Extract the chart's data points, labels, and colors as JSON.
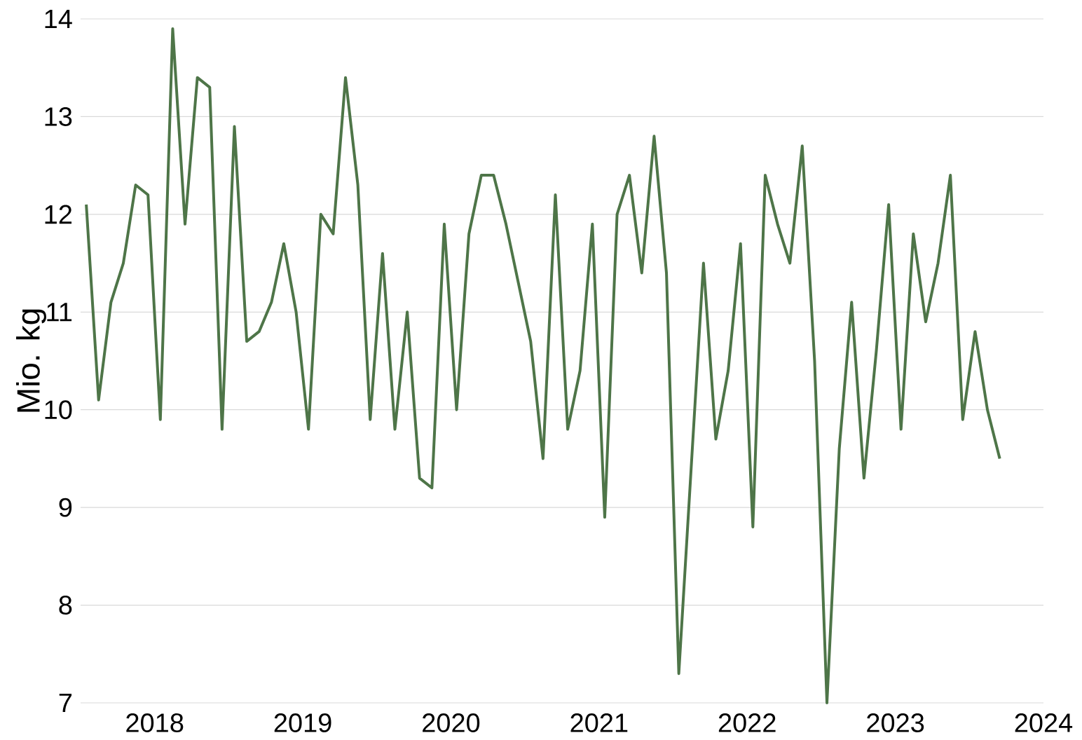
{
  "chart_data": {
    "type": "line",
    "ylabel": "Mio. kg",
    "x": [
      "2017-07-15",
      "2017-08-15",
      "2017-09-15",
      "2017-10-15",
      "2017-11-15",
      "2017-12-15",
      "2018-01-15",
      "2018-02-15",
      "2018-03-15",
      "2018-04-15",
      "2018-05-15",
      "2018-06-15",
      "2018-07-15",
      "2018-08-15",
      "2018-09-15",
      "2018-10-15",
      "2018-11-15",
      "2018-12-15",
      "2019-01-15",
      "2019-02-15",
      "2019-03-15",
      "2019-04-15",
      "2019-05-15",
      "2019-06-15",
      "2019-07-15",
      "2019-08-15",
      "2019-09-15",
      "2019-10-15",
      "2019-11-15",
      "2019-12-15",
      "2020-01-15",
      "2020-02-15",
      "2020-03-15",
      "2020-04-15",
      "2020-05-15",
      "2020-06-15",
      "2020-07-15",
      "2020-08-15",
      "2020-09-15",
      "2020-10-15",
      "2020-11-15",
      "2020-12-15",
      "2021-01-15",
      "2021-02-15",
      "2021-03-15",
      "2021-04-15",
      "2021-05-15",
      "2021-06-15",
      "2021-07-15",
      "2021-08-15",
      "2021-09-15",
      "2021-10-15",
      "2021-11-15",
      "2021-12-15",
      "2022-01-15",
      "2022-02-15",
      "2022-03-15",
      "2022-04-15",
      "2022-05-15",
      "2022-06-15",
      "2022-07-15",
      "2022-08-15",
      "2022-09-15",
      "2022-10-15",
      "2022-11-15",
      "2022-12-15",
      "2023-01-15",
      "2023-02-15",
      "2023-03-15",
      "2023-04-15",
      "2023-05-15",
      "2023-06-15",
      "2023-07-15",
      "2023-08-15",
      "2023-09-15"
    ],
    "series": [
      {
        "color": "#4e7548",
        "values": [
          12.1,
          10.1,
          11.1,
          11.5,
          12.3,
          12.2,
          9.9,
          13.9,
          11.9,
          13.4,
          13.3,
          9.8,
          12.9,
          10.7,
          10.8,
          11.1,
          11.7,
          11.0,
          9.8,
          12.0,
          11.8,
          13.4,
          12.3,
          9.9,
          11.6,
          9.8,
          11.0,
          9.3,
          9.2,
          11.9,
          10.0,
          11.8,
          12.4,
          12.4,
          11.9,
          11.3,
          10.7,
          9.5,
          12.2,
          9.8,
          10.4,
          11.9,
          8.9,
          12.0,
          12.4,
          11.4,
          12.8,
          11.4,
          7.3,
          9.4,
          11.5,
          9.7,
          10.4,
          11.7,
          8.8,
          12.4,
          11.9,
          11.5,
          12.7,
          10.5,
          7.0,
          9.6,
          11.1,
          9.3,
          10.6,
          12.1,
          9.8,
          11.8,
          10.9,
          11.5,
          12.4,
          9.9,
          10.8,
          10.0,
          9.5
        ]
      }
    ],
    "xlim": [
      "2017-07-01",
      "2024-01-01"
    ],
    "xticks": [
      {
        "value": "2018",
        "label": "2018"
      },
      {
        "value": "2019",
        "label": "2019"
      },
      {
        "value": "2020",
        "label": "2020"
      },
      {
        "value": "2021",
        "label": "2021"
      },
      {
        "value": "2022",
        "label": "2022"
      },
      {
        "value": "2023",
        "label": "2023"
      },
      {
        "value": "2024",
        "label": "2024"
      }
    ],
    "ylim": [
      7,
      14
    ],
    "yticks": [
      7,
      8,
      9,
      10,
      11,
      12,
      13,
      14
    ],
    "grid": "y",
    "marker": "none",
    "line_style": "solid"
  }
}
